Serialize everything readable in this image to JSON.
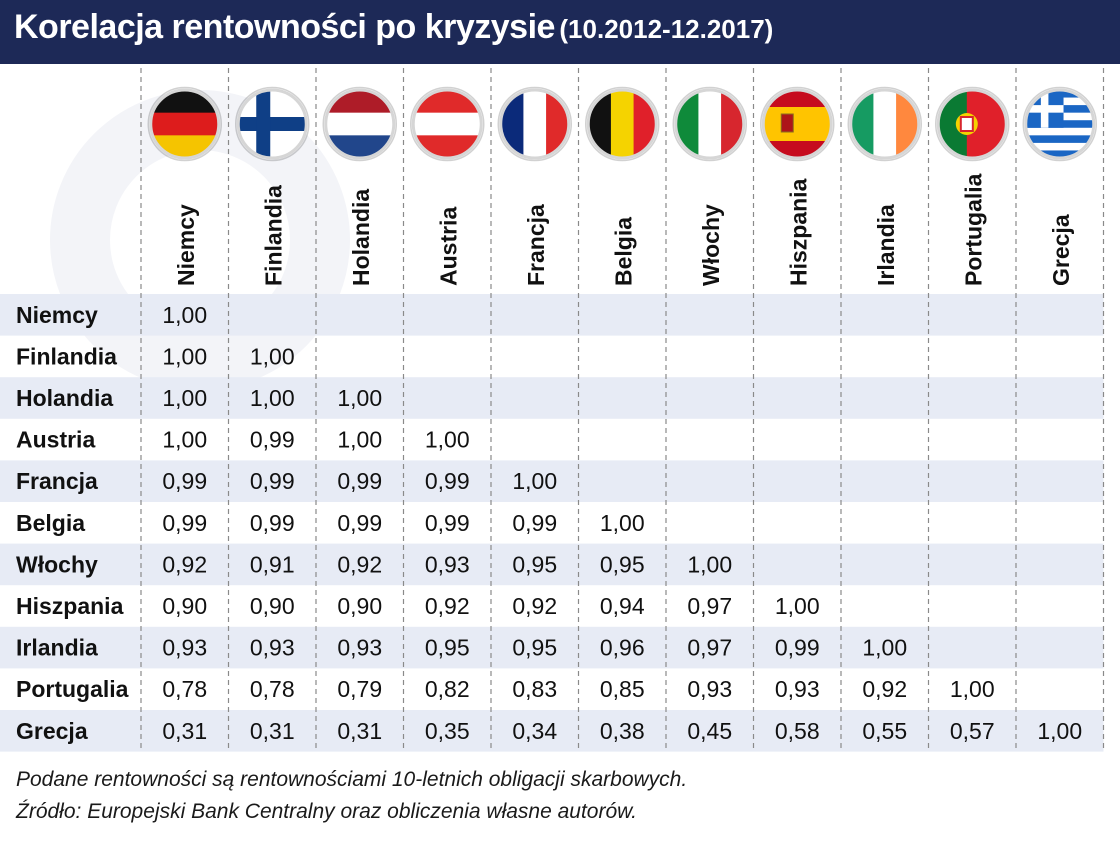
{
  "title": {
    "main": "Korelacja rentowności po kryzysie",
    "period": "(10.2012-12.2017)"
  },
  "colors": {
    "header_bg": "#1d2957",
    "row_band": "#e7ebf5",
    "divider": "#8a8a8a",
    "text": "#111111"
  },
  "chart_data": {
    "type": "table",
    "columns": [
      "Niemcy",
      "Finlandia",
      "Holandia",
      "Austria",
      "Francja",
      "Belgia",
      "Włochy",
      "Hiszpania",
      "Irlandia",
      "Portugalia",
      "Grecja"
    ],
    "column_flags": [
      "germany-flag-icon",
      "finland-flag-icon",
      "netherlands-flag-icon",
      "austria-flag-icon",
      "france-flag-icon",
      "belgium-flag-icon",
      "italy-flag-icon",
      "spain-flag-icon",
      "ireland-flag-icon",
      "portugal-flag-icon",
      "greece-flag-icon"
    ],
    "rows": [
      {
        "label": "Niemcy",
        "values": [
          "1,00"
        ]
      },
      {
        "label": "Finlandia",
        "values": [
          "1,00",
          "1,00"
        ]
      },
      {
        "label": "Holandia",
        "values": [
          "1,00",
          "1,00",
          "1,00"
        ]
      },
      {
        "label": "Austria",
        "values": [
          "1,00",
          "0,99",
          "1,00",
          "1,00"
        ]
      },
      {
        "label": "Francja",
        "values": [
          "0,99",
          "0,99",
          "0,99",
          "0,99",
          "1,00"
        ]
      },
      {
        "label": "Belgia",
        "values": [
          "0,99",
          "0,99",
          "0,99",
          "0,99",
          "0,99",
          "1,00"
        ]
      },
      {
        "label": "Włochy",
        "values": [
          "0,92",
          "0,91",
          "0,92",
          "0,93",
          "0,95",
          "0,95",
          "1,00"
        ]
      },
      {
        "label": "Hiszpania",
        "values": [
          "0,90",
          "0,90",
          "0,90",
          "0,92",
          "0,92",
          "0,94",
          "0,97",
          "1,00"
        ]
      },
      {
        "label": "Irlandia",
        "values": [
          "0,93",
          "0,93",
          "0,93",
          "0,95",
          "0,95",
          "0,96",
          "0,97",
          "0,99",
          "1,00"
        ]
      },
      {
        "label": "Portugalia",
        "values": [
          "0,78",
          "0,78",
          "0,79",
          "0,82",
          "0,83",
          "0,85",
          "0,93",
          "0,93",
          "0,92",
          "1,00"
        ]
      },
      {
        "label": "Grecja",
        "values": [
          "0,31",
          "0,31",
          "0,31",
          "0,35",
          "0,34",
          "0,38",
          "0,45",
          "0,58",
          "0,55",
          "0,57",
          "1,00"
        ]
      }
    ]
  },
  "footnotes": {
    "note": "Podane rentowności są rentownościami 10-letnich obligacji skarbowych.",
    "source": "Źródło: Europejski Bank Centralny oraz obliczenia własne autorów."
  }
}
